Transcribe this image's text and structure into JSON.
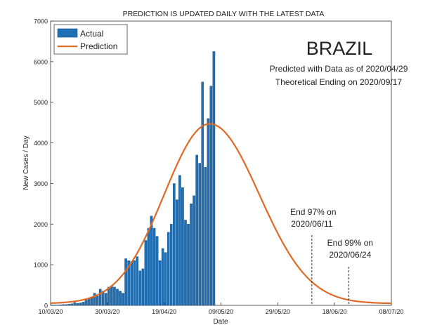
{
  "chart_data": {
    "type": "bar",
    "title": "PREDICTION IS UPDATED DAILY WITH THE LATEST DATA",
    "xlabel": "Date",
    "ylabel": "New Cases / Day",
    "ylim": [
      0,
      7000
    ],
    "yticks": [
      0,
      1000,
      2000,
      3000,
      4000,
      5000,
      6000,
      7000
    ],
    "xticks": [
      {
        "label": "10/03/20",
        "day": 0
      },
      {
        "label": "30/03/20",
        "day": 20
      },
      {
        "label": "19/04/20",
        "day": 40
      },
      {
        "label": "09/05/20",
        "day": 60
      },
      {
        "label": "29/05/20",
        "day": 80
      },
      {
        "label": "18/06/20",
        "day": 100
      },
      {
        "label": "08/07/20",
        "day": 120
      }
    ],
    "legend": {
      "placement": "top-left",
      "items": [
        {
          "label": "Actual",
          "color": "#1f6fb5"
        },
        {
          "label": "Prediction",
          "color": "#e06a25"
        }
      ]
    },
    "country": "BRAZIL",
    "info_line1": "Predicted with Data as of 2020/04/29",
    "info_line2": "Theoretical Ending on 2020/09/17",
    "series": [
      {
        "name": "Actual",
        "type": "bar",
        "color": "#1f6fb5",
        "start_day": 0,
        "values": [
          10,
          10,
          10,
          15,
          20,
          20,
          30,
          40,
          70,
          50,
          60,
          80,
          130,
          180,
          200,
          300,
          230,
          400,
          350,
          300,
          450,
          480,
          450,
          400,
          350,
          300,
          1150,
          1100,
          1080,
          1100,
          1200,
          850,
          900,
          1600,
          1900,
          2200,
          1900,
          1700,
          1100,
          1400,
          1300,
          1800,
          2000,
          3000,
          2600,
          3200,
          2900,
          2100,
          2000,
          2500,
          2700,
          3700,
          3500,
          5500,
          3400,
          4600,
          5400,
          6250
        ]
      },
      {
        "name": "Prediction",
        "type": "line",
        "color": "#e06a25",
        "peak_day": 56,
        "peak_value": 4470,
        "sigma_left": 16,
        "sigma_right": 17.5,
        "baseline": 45
      }
    ],
    "annotations": [
      {
        "line1": "End 97% on",
        "line2": "2020/06/11",
        "day": 92
      },
      {
        "line1": "End 99% on",
        "line2": "2020/06/24",
        "day": 105
      }
    ]
  }
}
